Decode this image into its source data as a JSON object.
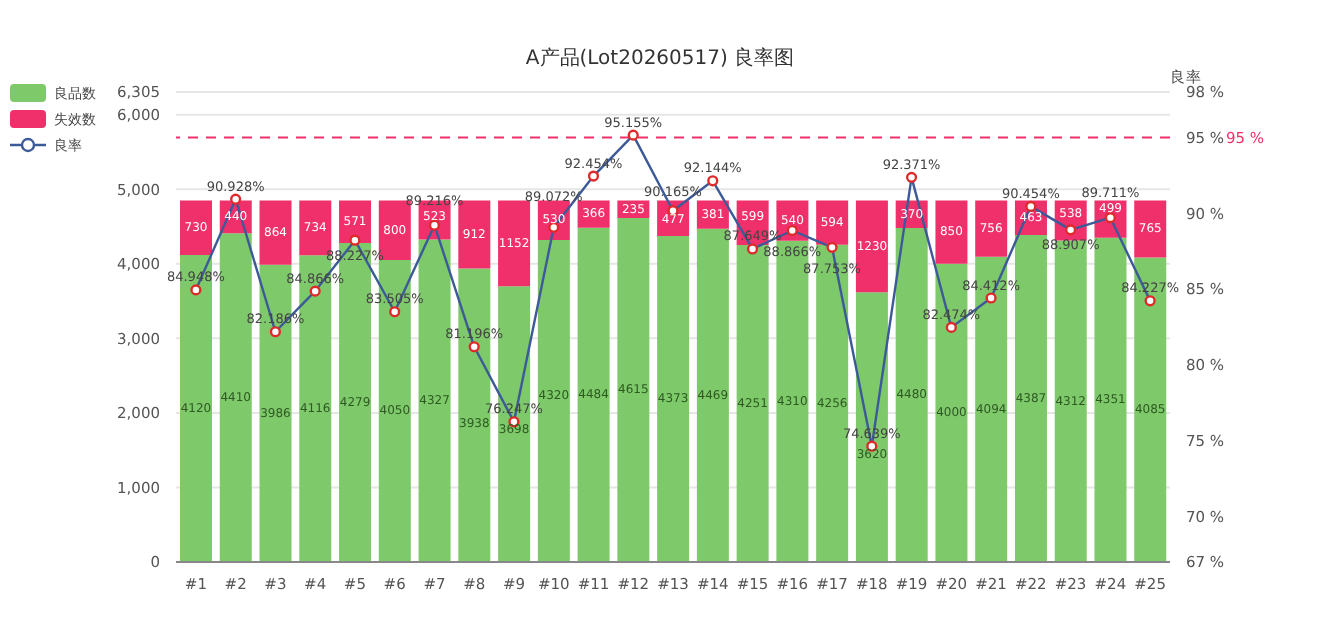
{
  "chart_data": {
    "type": "bar",
    "title": "A产品(Lot20260517) 良率图",
    "y2label": "良率",
    "stacked": true,
    "categories": [
      "#1",
      "#2",
      "#3",
      "#4",
      "#5",
      "#6",
      "#7",
      "#8",
      "#9",
      "#10",
      "#11",
      "#12",
      "#13",
      "#14",
      "#15",
      "#16",
      "#17",
      "#18",
      "#19",
      "#20",
      "#21",
      "#22",
      "#23",
      "#24",
      "#25"
    ],
    "series": [
      {
        "name": "良品数",
        "color": "#7ec96a",
        "values": [
          4120,
          4410,
          3986,
          4116,
          4279,
          4050,
          4327,
          3938,
          3698,
          4320,
          4484,
          4615,
          4373,
          4469,
          4251,
          4310,
          4256,
          3620,
          4480,
          4000,
          4094,
          4387,
          4312,
          4351,
          4085
        ],
        "value_labels": [
          "4120",
          "4410",
          "3986",
          "4116",
          "4279",
          "4050",
          "4327",
          "3938",
          "3698",
          "4320",
          "4484",
          "4615",
          "4373",
          "4469",
          "4251",
          "4310",
          "4256",
          "3620",
          "4480",
          "4000",
          "4094",
          "4387",
          "4312",
          "4351",
          "4085"
        ]
      },
      {
        "name": "失效数",
        "color": "#f0306a",
        "values": [
          730,
          440,
          864,
          734,
          571,
          800,
          523,
          912,
          1152,
          530,
          366,
          235,
          477,
          381,
          599,
          540,
          594,
          1230,
          370,
          850,
          756,
          463,
          538,
          499,
          765
        ],
        "value_labels": [
          "730",
          "440",
          "864",
          "734",
          "571",
          "800",
          "523",
          "912",
          "1152",
          "530",
          "366",
          "235",
          "477",
          "381",
          "599",
          "540",
          "594",
          "1230",
          "370",
          "850",
          "756",
          "463",
          "538",
          "499",
          "765"
        ]
      },
      {
        "name": "良率",
        "type": "line",
        "axis": "y2",
        "color": "#3d5a98",
        "values": [
          84.948,
          90.928,
          82.186,
          84.866,
          88.227,
          83.505,
          89.216,
          81.196,
          76.247,
          89.072,
          92.454,
          95.155,
          90.165,
          92.144,
          87.649,
          88.866,
          87.753,
          74.639,
          92.371,
          82.474,
          84.412,
          90.454,
          88.907,
          89.711,
          84.227
        ],
        "value_labels": [
          "84.948%",
          "90.928%",
          "82.186%",
          "84.866%",
          "88.227%",
          "83.505%",
          "89.216%",
          "81.196%",
          "76.247%",
          "89.072%",
          "92.454%",
          "95.155%",
          "90.165%",
          "92.144%",
          "87.649%",
          "88.866%",
          "87.753%",
          "74.639%",
          "92.371%",
          "82.474%",
          "84.412%",
          "90.454%",
          "88.907%",
          "89.711%",
          "84.227%"
        ]
      }
    ],
    "ylim": [
      0,
      6305
    ],
    "yticks": [
      0,
      {
        "value": 1000,
        "label": "1,000"
      },
      {
        "value": 2000,
        "label": "2,000"
      },
      {
        "value": 3000,
        "label": "3,000"
      },
      {
        "value": 4000,
        "label": "4,000"
      },
      {
        "value": 5000,
        "label": "5,000"
      },
      {
        "value": 6000,
        "label": "6,000"
      },
      {
        "value": 6305,
        "label": "6,305"
      }
    ],
    "y2lim": [
      67,
      98
    ],
    "y2ticks": [
      {
        "value": 67,
        "label": "67 %"
      },
      {
        "value": 70,
        "label": "70 %"
      },
      {
        "value": 75,
        "label": "75 %"
      },
      {
        "value": 80,
        "label": "80 %"
      },
      {
        "value": 85,
        "label": "85 %"
      },
      {
        "value": 90,
        "label": "90 %"
      },
      {
        "value": 95,
        "label": "95 %"
      },
      {
        "value": 98,
        "label": "98 %"
      }
    ],
    "ref_lines": [
      {
        "axis": "y2",
        "value": 95,
        "label": "95 %",
        "color": "#f0306a",
        "line_style": "dashed"
      }
    ],
    "grid": "y",
    "legend": "top left",
    "marker": "circle"
  }
}
